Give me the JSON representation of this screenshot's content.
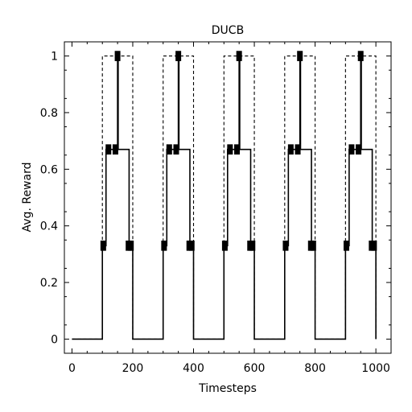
{
  "chart_data": {
    "type": "line",
    "title": "DUCB",
    "xlabel": "Timesteps",
    "ylabel": "Avg. Reward",
    "xlim": [
      -25,
      1050
    ],
    "ylim": [
      -0.05,
      1.05
    ],
    "xticks": [
      0,
      200,
      400,
      600,
      800,
      1000
    ],
    "yticks": [
      0,
      0.2,
      0.4,
      0.6,
      0.8,
      1
    ],
    "xticklabels": [
      "0",
      "200",
      "400",
      "600",
      "800",
      "1000"
    ],
    "yticklabels": [
      "0",
      "0.2",
      "0.4",
      "0.6",
      "0.8",
      "1"
    ],
    "grid": false,
    "legend": "none",
    "series": [
      {
        "style": "dashed",
        "x": [
          0,
          100,
          100,
          200,
          200,
          300,
          300,
          400,
          400,
          500,
          500,
          600,
          600,
          700,
          700,
          800,
          800,
          900,
          900,
          1000,
          1000
        ],
        "y": [
          0,
          0,
          1,
          1,
          0,
          0,
          1,
          1,
          0,
          0,
          1,
          1,
          0,
          0,
          1,
          1,
          0,
          0,
          1,
          1,
          0
        ]
      },
      {
        "style": "solid",
        "x": [
          0,
          100,
          100,
          112,
          112,
          150,
          150,
          152,
          152,
          188,
          188,
          200,
          200,
          300,
          300,
          312,
          312,
          350,
          350,
          352,
          352,
          388,
          388,
          400,
          400,
          500,
          500,
          512,
          512,
          550,
          550,
          552,
          552,
          588,
          588,
          600,
          600,
          700,
          700,
          712,
          712,
          750,
          750,
          752,
          752,
          788,
          788,
          800,
          800,
          900,
          900,
          912,
          912,
          950,
          950,
          952,
          952,
          988,
          988,
          1000,
          1000
        ],
        "y": [
          0,
          0,
          0.33,
          0.33,
          0.67,
          0.67,
          1,
          1,
          0.67,
          0.67,
          0.33,
          0.33,
          0,
          0,
          0.33,
          0.33,
          0.67,
          0.67,
          1,
          1,
          0.67,
          0.67,
          0.33,
          0.33,
          0,
          0,
          0.33,
          0.33,
          0.67,
          0.67,
          1,
          1,
          0.67,
          0.67,
          0.33,
          0.33,
          0,
          0,
          0.33,
          0.33,
          0.67,
          0.67,
          1,
          1,
          0.67,
          0.67,
          0.33,
          0.33,
          0,
          0,
          0.33,
          0.33,
          0.67,
          0.67,
          1,
          1,
          0.67,
          0.67,
          0.33,
          0.33,
          0
        ]
      }
    ],
    "error_bars": {
      "half_height": 0.018,
      "points": [
        {
          "x": 103,
          "y": 0.33
        },
        {
          "x": 120,
          "y": 0.67
        },
        {
          "x": 143,
          "y": 0.67
        },
        {
          "x": 150,
          "y": 1
        },
        {
          "x": 186,
          "y": 0.33
        },
        {
          "x": 194,
          "y": 0.33
        },
        {
          "x": 303,
          "y": 0.33
        },
        {
          "x": 320,
          "y": 0.67
        },
        {
          "x": 343,
          "y": 0.67
        },
        {
          "x": 350,
          "y": 1
        },
        {
          "x": 386,
          "y": 0.33
        },
        {
          "x": 394,
          "y": 0.33
        },
        {
          "x": 503,
          "y": 0.33
        },
        {
          "x": 520,
          "y": 0.67
        },
        {
          "x": 543,
          "y": 0.67
        },
        {
          "x": 550,
          "y": 1
        },
        {
          "x": 586,
          "y": 0.33
        },
        {
          "x": 594,
          "y": 0.33
        },
        {
          "x": 703,
          "y": 0.33
        },
        {
          "x": 720,
          "y": 0.67
        },
        {
          "x": 743,
          "y": 0.67
        },
        {
          "x": 750,
          "y": 1
        },
        {
          "x": 786,
          "y": 0.33
        },
        {
          "x": 794,
          "y": 0.33
        },
        {
          "x": 903,
          "y": 0.33
        },
        {
          "x": 920,
          "y": 0.67
        },
        {
          "x": 943,
          "y": 0.67
        },
        {
          "x": 950,
          "y": 1
        },
        {
          "x": 986,
          "y": 0.33
        },
        {
          "x": 994,
          "y": 0.33
        }
      ]
    }
  }
}
